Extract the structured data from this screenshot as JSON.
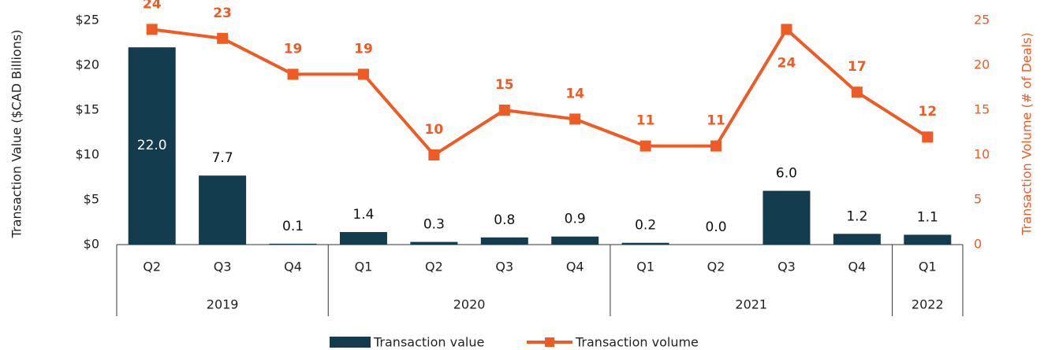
{
  "chart_data": {
    "type": "bar-line",
    "categories": [
      "Q2",
      "Q3",
      "Q4",
      "Q1",
      "Q2",
      "Q3",
      "Q4",
      "Q1",
      "Q2",
      "Q3",
      "Q4",
      "Q1"
    ],
    "groups": [
      {
        "label": "2019",
        "span": 3
      },
      {
        "label": "2020",
        "span": 4
      },
      {
        "label": "2021",
        "span": 4
      },
      {
        "label": "2022",
        "span": 1
      }
    ],
    "series": [
      {
        "name": "Transaction value",
        "type": "bar",
        "color": "#133c4f",
        "values": [
          22.0,
          7.7,
          0.1,
          1.4,
          0.3,
          0.8,
          0.9,
          0.2,
          0.0,
          6.0,
          1.2,
          1.1
        ],
        "value_labels": [
          "22.0",
          "7.7",
          "0.1",
          "1.4",
          "0.3",
          "0.8",
          "0.9",
          "0.2",
          "0.0",
          "6.0",
          "1.2",
          "1.1"
        ]
      },
      {
        "name": "Transaction volume",
        "type": "line",
        "axis": "y2",
        "color": "#ef5b25",
        "values": [
          24,
          23,
          19,
          19,
          10,
          15,
          14,
          11,
          11,
          24,
          17,
          12
        ]
      }
    ],
    "ylabel": "Transaction Value ($CAD Billions)",
    "y2label": "Transaction Volume (# of Deals)",
    "ylim": [
      0,
      25
    ],
    "yticks": [
      {
        "value": 0,
        "label": "$0"
      },
      {
        "value": 5,
        "label": "$5"
      },
      {
        "value": 10,
        "label": "$10"
      },
      {
        "value": 15,
        "label": "$15"
      },
      {
        "value": 20,
        "label": "$20"
      },
      {
        "value": 25,
        "label": "$25"
      }
    ],
    "y2lim": [
      0,
      25
    ],
    "y2ticks": [
      0,
      5,
      10,
      15,
      20,
      25
    ],
    "legend": "bottom"
  }
}
